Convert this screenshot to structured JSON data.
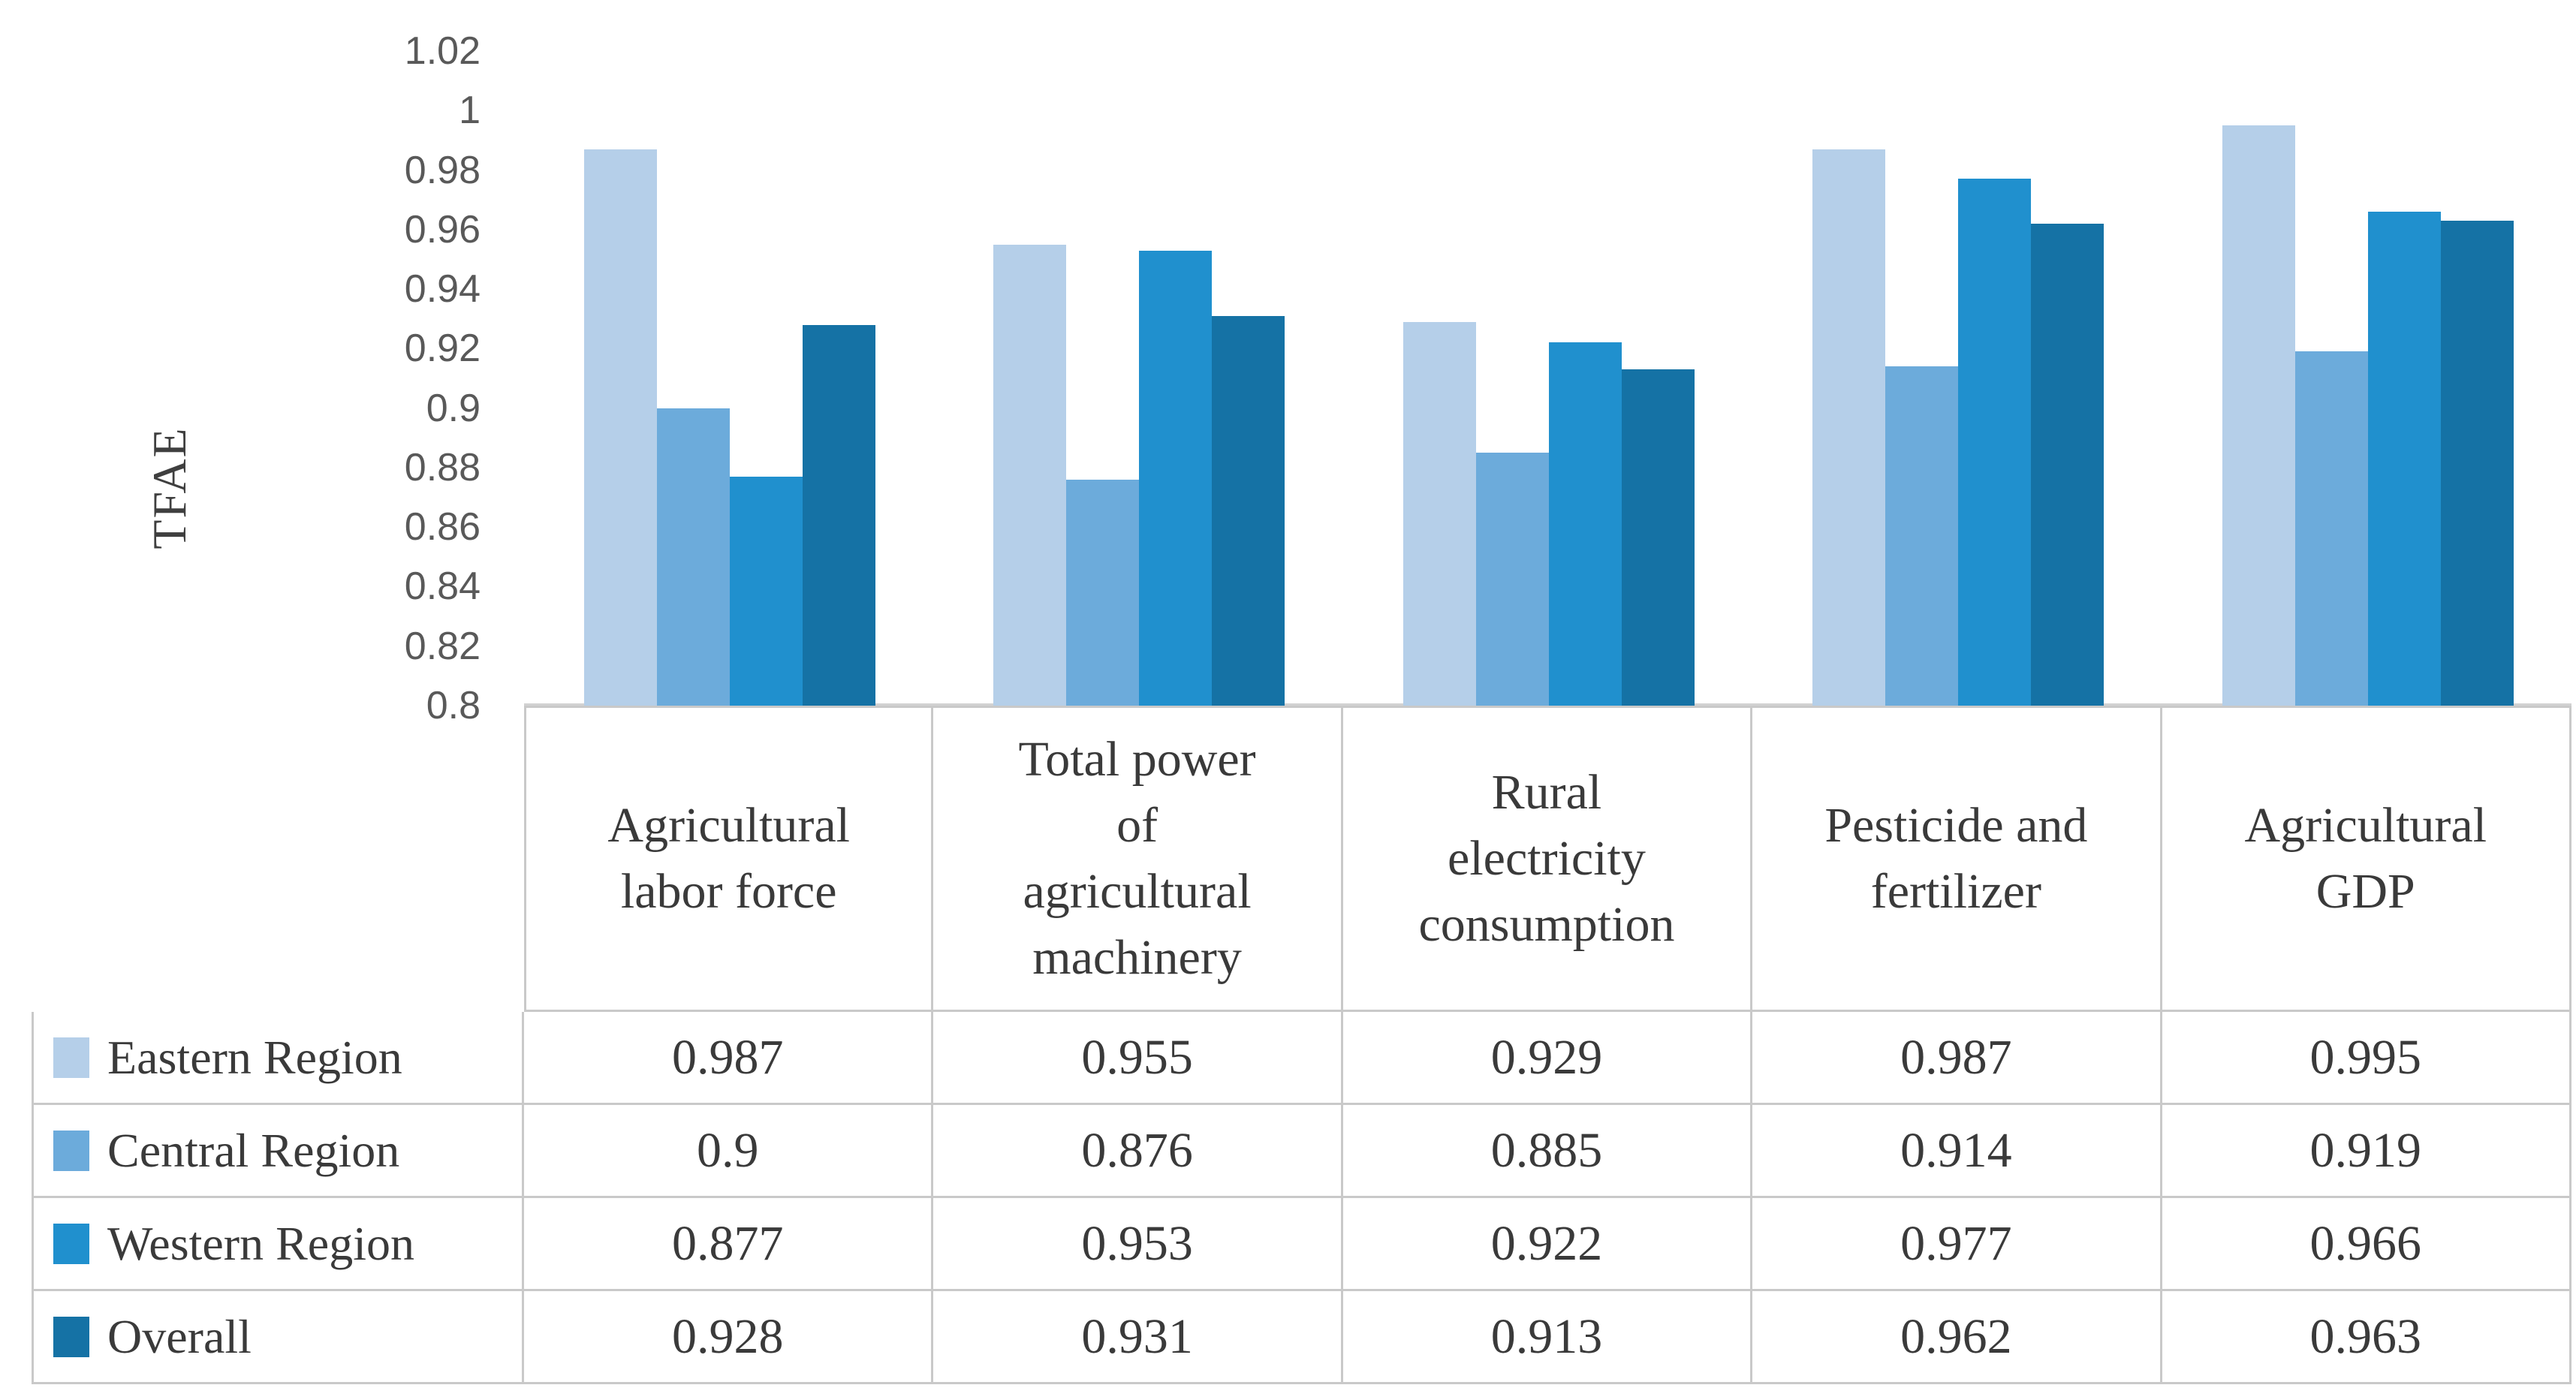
{
  "figure": {
    "background": "#FFFFFF",
    "axis_line_color": "#D2D2D2",
    "table_border_color": "#C9C9C9",
    "tick_text_color": "#595959",
    "text_color": "#3A3A3A"
  },
  "chart_data": {
    "type": "bar",
    "title": "",
    "xlabel": "",
    "ylabel": "TFAE",
    "ylim": [
      0.8,
      1.02
    ],
    "ytick_step": 0.02,
    "yticks": [
      1.02,
      1,
      0.98,
      0.96,
      0.94,
      0.92,
      0.9,
      0.88,
      0.86,
      0.84,
      0.82,
      0.8
    ],
    "grid": false,
    "legend_position": "data-table-left-column",
    "categories": [
      "Agricultural\nlabor force",
      "Total power\nof\nagricultural\nmachinery",
      "Rural\nelectricity\nconsumption",
      "Pesticide and\nfertilizer",
      "Agricultural\nGDP"
    ],
    "series": [
      {
        "name": "Eastern Region",
        "color": "#B5CFE9",
        "values": [
          0.987,
          0.955,
          0.929,
          0.987,
          0.995
        ]
      },
      {
        "name": "Central Region",
        "color": "#6CABDB",
        "values": [
          0.9,
          0.876,
          0.885,
          0.914,
          0.919
        ]
      },
      {
        "name": "Western Region",
        "color": "#2090CE",
        "values": [
          0.877,
          0.953,
          0.922,
          0.977,
          0.966
        ]
      },
      {
        "name": "Overall",
        "color": "#1572A5",
        "values": [
          0.928,
          0.931,
          0.913,
          0.962,
          0.963
        ]
      }
    ]
  }
}
